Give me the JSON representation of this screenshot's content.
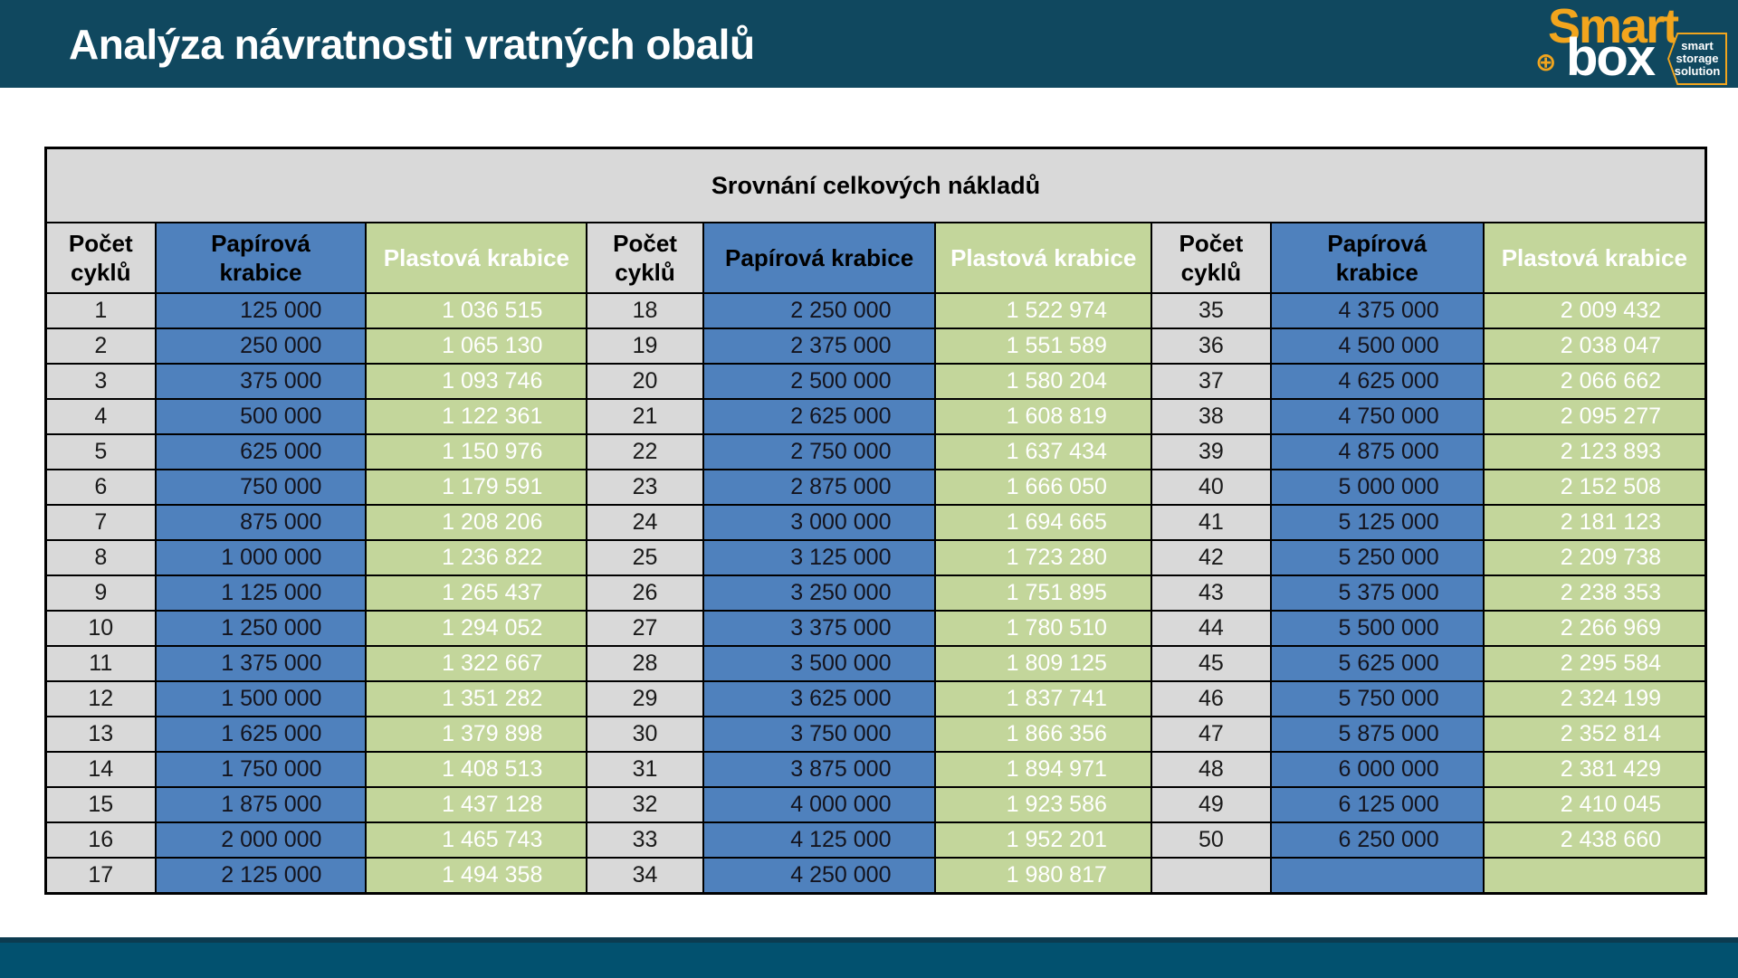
{
  "page": {
    "title": "Analýza návratnosti vratných obalů",
    "colors": {
      "navy_band": "#10485f",
      "bottom_bar": "#02516f",
      "logo_orange": "#f2a51d",
      "paper_blue": "#4f81bd",
      "plastic_green": "#c3d69b",
      "gray": "#d9d9d9"
    },
    "logo": {
      "smart": "Smart",
      "box": "box",
      "plus": "⊕",
      "tagline": {
        "line1": "smart",
        "line2": "storage",
        "line3": "solution"
      }
    }
  },
  "table": {
    "title": "Srovnání celkových nákladů",
    "header_groups": [
      {
        "cycles": "Počet\ncyklů",
        "paper": "Papírová\nkrabice",
        "plastic": "Plastová krabice"
      },
      {
        "cycles": "Počet\ncyklů",
        "paper": "Papírová krabice",
        "plastic": "Plastová krabice"
      },
      {
        "cycles": "Počet\ncyklů",
        "paper": "Papírová\nkrabice",
        "plastic": "Plastová krabice"
      }
    ],
    "rows": [
      [
        "1",
        "125 000",
        "1 036 515",
        "18",
        "2 250 000",
        "1 522 974",
        "35",
        "4 375 000",
        "2 009 432"
      ],
      [
        "2",
        "250 000",
        "1 065 130",
        "19",
        "2 375 000",
        "1 551 589",
        "36",
        "4 500 000",
        "2 038 047"
      ],
      [
        "3",
        "375 000",
        "1 093 746",
        "20",
        "2 500 000",
        "1 580 204",
        "37",
        "4 625 000",
        "2 066 662"
      ],
      [
        "4",
        "500 000",
        "1 122 361",
        "21",
        "2 625 000",
        "1 608 819",
        "38",
        "4 750 000",
        "2 095 277"
      ],
      [
        "5",
        "625 000",
        "1 150 976",
        "22",
        "2 750 000",
        "1 637 434",
        "39",
        "4 875 000",
        "2 123 893"
      ],
      [
        "6",
        "750 000",
        "1 179 591",
        "23",
        "2 875 000",
        "1 666 050",
        "40",
        "5 000 000",
        "2 152 508"
      ],
      [
        "7",
        "875 000",
        "1 208 206",
        "24",
        "3 000 000",
        "1 694 665",
        "41",
        "5 125 000",
        "2 181 123"
      ],
      [
        "8",
        "1 000 000",
        "1 236 822",
        "25",
        "3 125 000",
        "1 723 280",
        "42",
        "5 250 000",
        "2 209 738"
      ],
      [
        "9",
        "1 125 000",
        "1 265 437",
        "26",
        "3 250 000",
        "1 751 895",
        "43",
        "5 375 000",
        "2 238 353"
      ],
      [
        "10",
        "1 250 000",
        "1 294 052",
        "27",
        "3 375 000",
        "1 780 510",
        "44",
        "5 500 000",
        "2 266 969"
      ],
      [
        "11",
        "1 375 000",
        "1 322 667",
        "28",
        "3 500 000",
        "1 809 125",
        "45",
        "5 625 000",
        "2 295 584"
      ],
      [
        "12",
        "1 500 000",
        "1 351 282",
        "29",
        "3 625 000",
        "1 837 741",
        "46",
        "5 750 000",
        "2 324 199"
      ],
      [
        "13",
        "1 625 000",
        "1 379 898",
        "30",
        "3 750 000",
        "1 866 356",
        "47",
        "5 875 000",
        "2 352 814"
      ],
      [
        "14",
        "1 750 000",
        "1 408 513",
        "31",
        "3 875 000",
        "1 894 971",
        "48",
        "6 000 000",
        "2 381 429"
      ],
      [
        "15",
        "1 875 000",
        "1 437 128",
        "32",
        "4 000 000",
        "1 923 586",
        "49",
        "6 125 000",
        "2 410 045"
      ],
      [
        "16",
        "2 000 000",
        "1 465 743",
        "33",
        "4 125 000",
        "1 952 201",
        "50",
        "6 250 000",
        "2 438 660"
      ],
      [
        "17",
        "2 125 000",
        "1 494 358",
        "34",
        "4 250 000",
        "1 980 817",
        "",
        "",
        ""
      ]
    ]
  }
}
